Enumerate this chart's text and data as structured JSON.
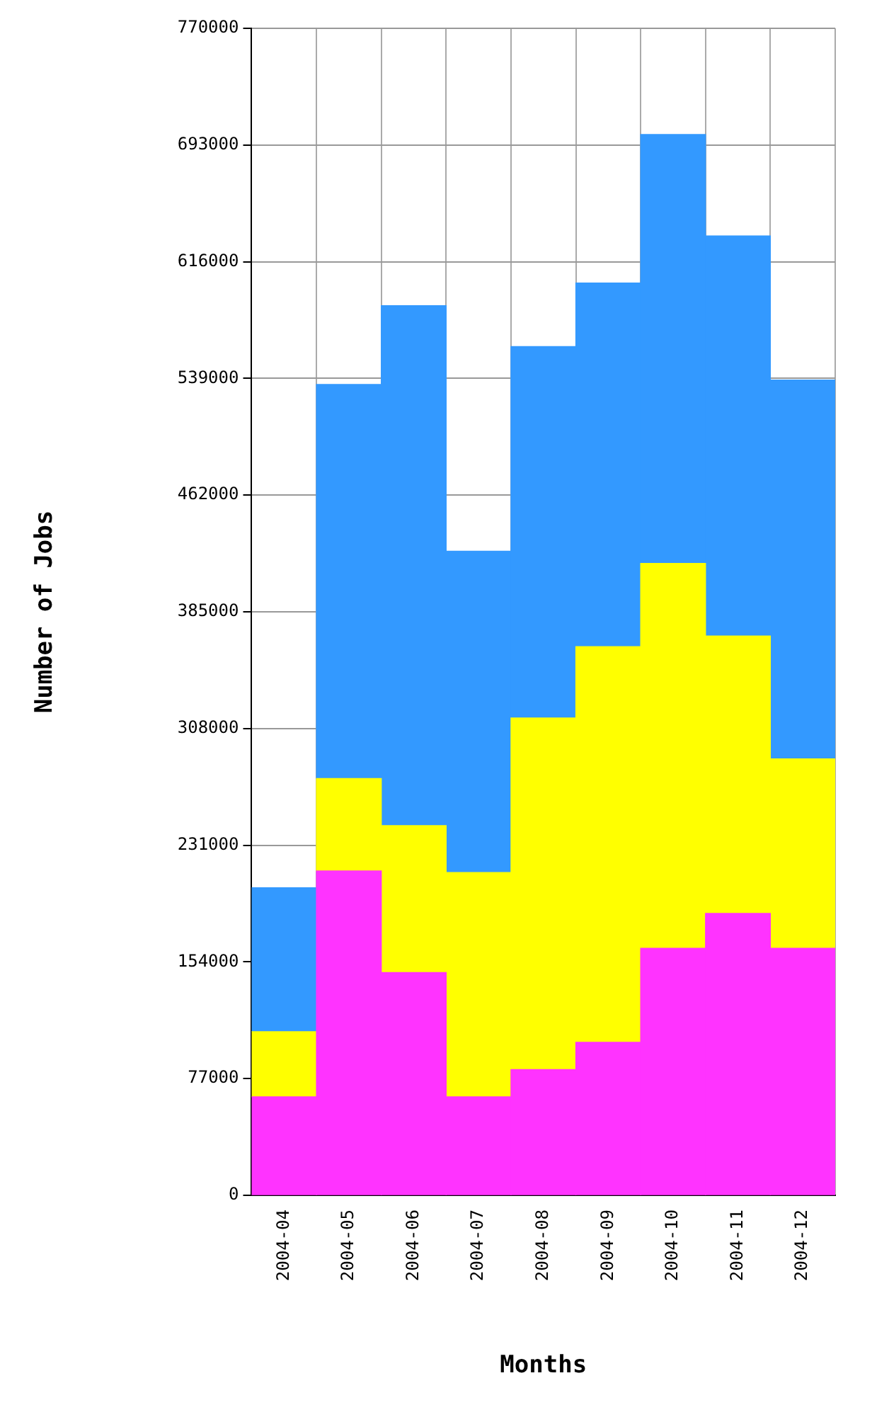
{
  "chart_data": {
    "type": "bar",
    "stacked": true,
    "xlabel": "Months",
    "ylabel": "Number of Jobs",
    "categories": [
      "2004-04",
      "2004-05",
      "2004-06",
      "2004-07",
      "2004-08",
      "2004-09",
      "2004-10",
      "2004-11",
      "2004-12"
    ],
    "series": [
      {
        "color": "#ff33ff",
        "values": [
          65000,
          214000,
          147000,
          65000,
          83000,
          101000,
          163000,
          186000,
          163000
        ]
      },
      {
        "color": "#ffff00",
        "values": [
          43000,
          61000,
          97000,
          148000,
          232000,
          261000,
          254000,
          183000,
          125000
        ]
      },
      {
        "color": "#3399ff",
        "values": [
          95000,
          260000,
          343000,
          212000,
          245000,
          240000,
          283000,
          264000,
          250000
        ]
      }
    ],
    "ylim": [
      0,
      770000
    ],
    "yticks": [
      0,
      77000,
      154000,
      231000,
      308000,
      385000,
      462000,
      539000,
      616000,
      693000,
      770000
    ],
    "grid": true,
    "legend": false
  }
}
